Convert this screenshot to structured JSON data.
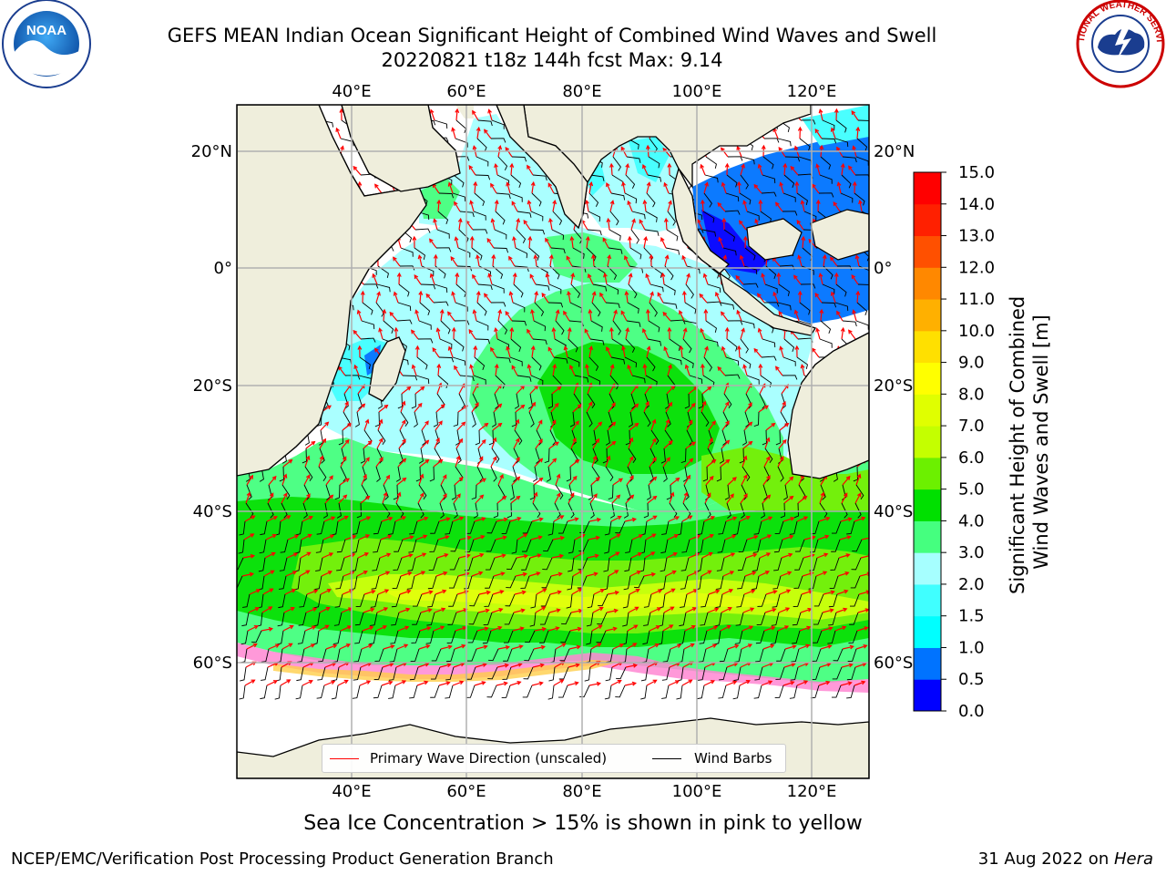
{
  "title": {
    "line1": "GEFS MEAN Indian Ocean Significant Height of Combined Wind Waves and Swell",
    "line2": "20220821 t18z 144h fcst   Max: 9.14"
  },
  "map": {
    "lon_ticks": [
      "40°E",
      "60°E",
      "80°E",
      "100°E",
      "120°E"
    ],
    "lat_ticks": [
      "20°N",
      "0°",
      "20°S",
      "40°S",
      "60°S"
    ],
    "lon_range": [
      20,
      130
    ],
    "lat_range": [
      -70,
      28
    ],
    "colors": {
      "land": "#efeedc",
      "grid": "#b0b0b0",
      "wave_arrow": "#ff0000",
      "wind_barb": "#000000"
    },
    "legend": {
      "wave_label": "Primary Wave Direction (unscaled)",
      "barb_label": "Wind Barbs"
    }
  },
  "colorbar": {
    "title": "Significant Height of Combined Wind Waves and Swell [m]",
    "title_line1": "Significant Height of Combined",
    "title_line2": "Wind Waves and Swell [m]",
    "ticks": [
      "0.0",
      "0.5",
      "1.0",
      "1.5",
      "2.0",
      "3.0",
      "4.0",
      "5.0",
      "6.0",
      "7.0",
      "8.0",
      "9.0",
      "10.0",
      "11.0",
      "12.0",
      "13.0",
      "14.0",
      "15.0"
    ],
    "colors": [
      "#0000ff",
      "#0073ff",
      "#00ffff",
      "#40ffff",
      "#a6ffff",
      "#45ff7f",
      "#00e000",
      "#6cf000",
      "#c4ff00",
      "#e0ff00",
      "#ffff00",
      "#ffe000",
      "#ffb000",
      "#ff8800",
      "#ff5000",
      "#ff2000",
      "#ff0000"
    ]
  },
  "notes": {
    "sea_ice": "Sea Ice Concentration > 15% is shown in pink to yellow",
    "footer_left": "NCEP/EMC/Verification Post Processing Product Generation Branch",
    "footer_date": "31 Aug 2022 on ",
    "footer_host": "Hera"
  },
  "logos": {
    "noaa": "NOAA",
    "nws_text": "NATIONAL WEATHER SERVICE"
  }
}
